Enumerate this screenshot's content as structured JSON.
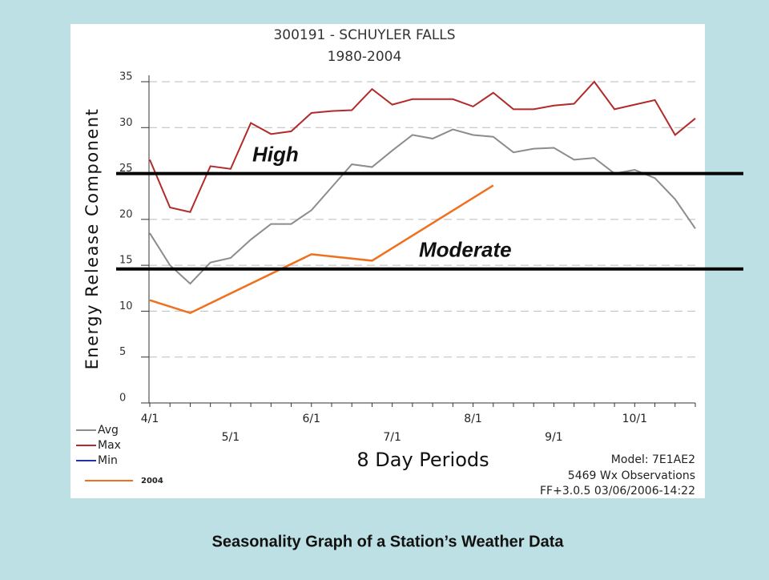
{
  "chart_data": {
    "type": "line",
    "title": "300191  - SCHUYLER FALLS",
    "subtitle": "1980-2004",
    "y_label": "Energy Release Component",
    "x_label": "8 Day Periods",
    "caption": "Seasonality Graph of a Station’s Weather Data",
    "notes": [
      "Model: 7E1AE2",
      "5469 Wx Observations",
      "FF+3.0.5 03/06/2006-14:22"
    ],
    "categories": [
      "4/1",
      null,
      null,
      null,
      "5/1",
      null,
      null,
      null,
      "6/1",
      null,
      null,
      null,
      "7/1",
      null,
      null,
      null,
      "8/1",
      null,
      null,
      null,
      "9/1",
      null,
      null,
      null,
      "10/1",
      null,
      null,
      null
    ],
    "ylim": [
      0,
      35
    ],
    "yticks": [
      0,
      5,
      10,
      15,
      20,
      25,
      30,
      35
    ],
    "grid": true,
    "series": [
      {
        "name": "Avg",
        "color": "#8c8c8c",
        "values": [
          18.5,
          15,
          13,
          15.3,
          15.8,
          17.8,
          19.5,
          19.5,
          21,
          23.5,
          26,
          25.7,
          27.5,
          29.2,
          28.8,
          29.8,
          29.2,
          29,
          27.3,
          27.7,
          27.8,
          26.5,
          26.7,
          25,
          25.4,
          24.5,
          22.2,
          19
        ]
      },
      {
        "name": "Max",
        "color": "#b22a2a",
        "values": [
          26.5,
          21.3,
          20.8,
          25.8,
          25.5,
          30.5,
          29.3,
          29.6,
          31.6,
          31.8,
          31.9,
          34.2,
          32.5,
          33.1,
          33.1,
          33.1,
          32.3,
          33.8,
          32,
          32,
          32.4,
          32.6,
          35,
          32,
          32.5,
          33,
          29.2,
          31
        ]
      },
      {
        "name": "Min",
        "color": "#2233aa",
        "values": [
          null,
          null,
          null,
          null,
          null,
          null,
          null,
          null,
          null,
          null,
          null,
          null,
          null,
          null,
          null,
          null,
          null,
          null,
          null,
          null,
          null,
          null,
          null,
          null,
          null,
          null,
          null,
          null
        ]
      },
      {
        "name": "2004",
        "color": "#f07020",
        "x": [
          0,
          2,
          8,
          11,
          17
        ],
        "values": [
          11.2,
          9.8,
          16.2,
          15.5,
          23.7
        ]
      }
    ],
    "thresholds": [
      {
        "label": "High",
        "value": 25
      },
      {
        "label": "Moderate",
        "value": 14.6
      }
    ]
  }
}
